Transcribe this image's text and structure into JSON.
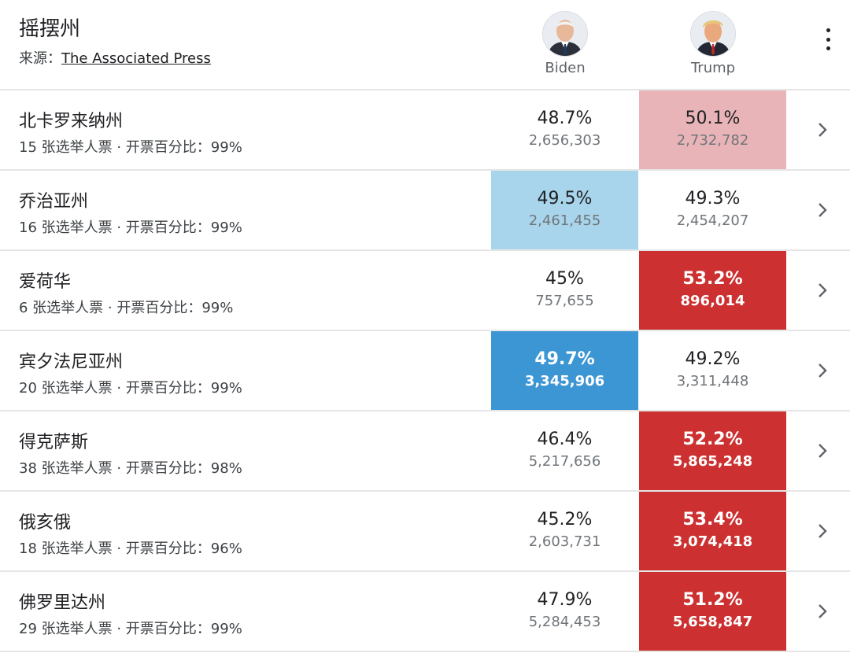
{
  "header": {
    "title": "摇摆州",
    "source_label": "来源：",
    "source_link": "The Associated Press"
  },
  "candidates": [
    {
      "name": "Biden",
      "icon": "biden-avatar-icon"
    },
    {
      "name": "Trump",
      "icon": "trump-avatar-icon"
    }
  ],
  "colors": {
    "biden_light": "#a8d5ec",
    "biden_strong": "#3d96d4",
    "trump_light": "#e8b4b8",
    "trump_strong": "#cc3030"
  },
  "rows": [
    {
      "state": "北卡罗来纳州",
      "meta": "15 张选举人票 · 开票百分比：99%",
      "biden_pct": "48.7%",
      "biden_votes": "2,656,303",
      "trump_pct": "50.1%",
      "trump_votes": "2,732,782"
    },
    {
      "state": "乔治亚州",
      "meta": "16 张选举人票 · 开票百分比：99%",
      "biden_pct": "49.5%",
      "biden_votes": "2,461,455",
      "trump_pct": "49.3%",
      "trump_votes": "2,454,207"
    },
    {
      "state": "爱荷华",
      "meta": "6 张选举人票 · 开票百分比：99%",
      "biden_pct": "45%",
      "biden_votes": "757,655",
      "trump_pct": "53.2%",
      "trump_votes": "896,014"
    },
    {
      "state": "宾夕法尼亚州",
      "meta": "20 张选举人票 · 开票百分比：99%",
      "biden_pct": "49.7%",
      "biden_votes": "3,345,906",
      "trump_pct": "49.2%",
      "trump_votes": "3,311,448"
    },
    {
      "state": "得克萨斯",
      "meta": "38 张选举人票 · 开票百分比：98%",
      "biden_pct": "46.4%",
      "biden_votes": "5,217,656",
      "trump_pct": "52.2%",
      "trump_votes": "5,865,248"
    },
    {
      "state": "俄亥俄",
      "meta": "18 张选举人票 · 开票百分比：96%",
      "biden_pct": "45.2%",
      "biden_votes": "2,603,731",
      "trump_pct": "53.4%",
      "trump_votes": "3,074,418"
    },
    {
      "state": "佛罗里达州",
      "meta": "29 张选举人票 · 开票百分比：99%",
      "biden_pct": "47.9%",
      "biden_votes": "5,284,453",
      "trump_pct": "51.2%",
      "trump_votes": "5,658,847"
    }
  ]
}
